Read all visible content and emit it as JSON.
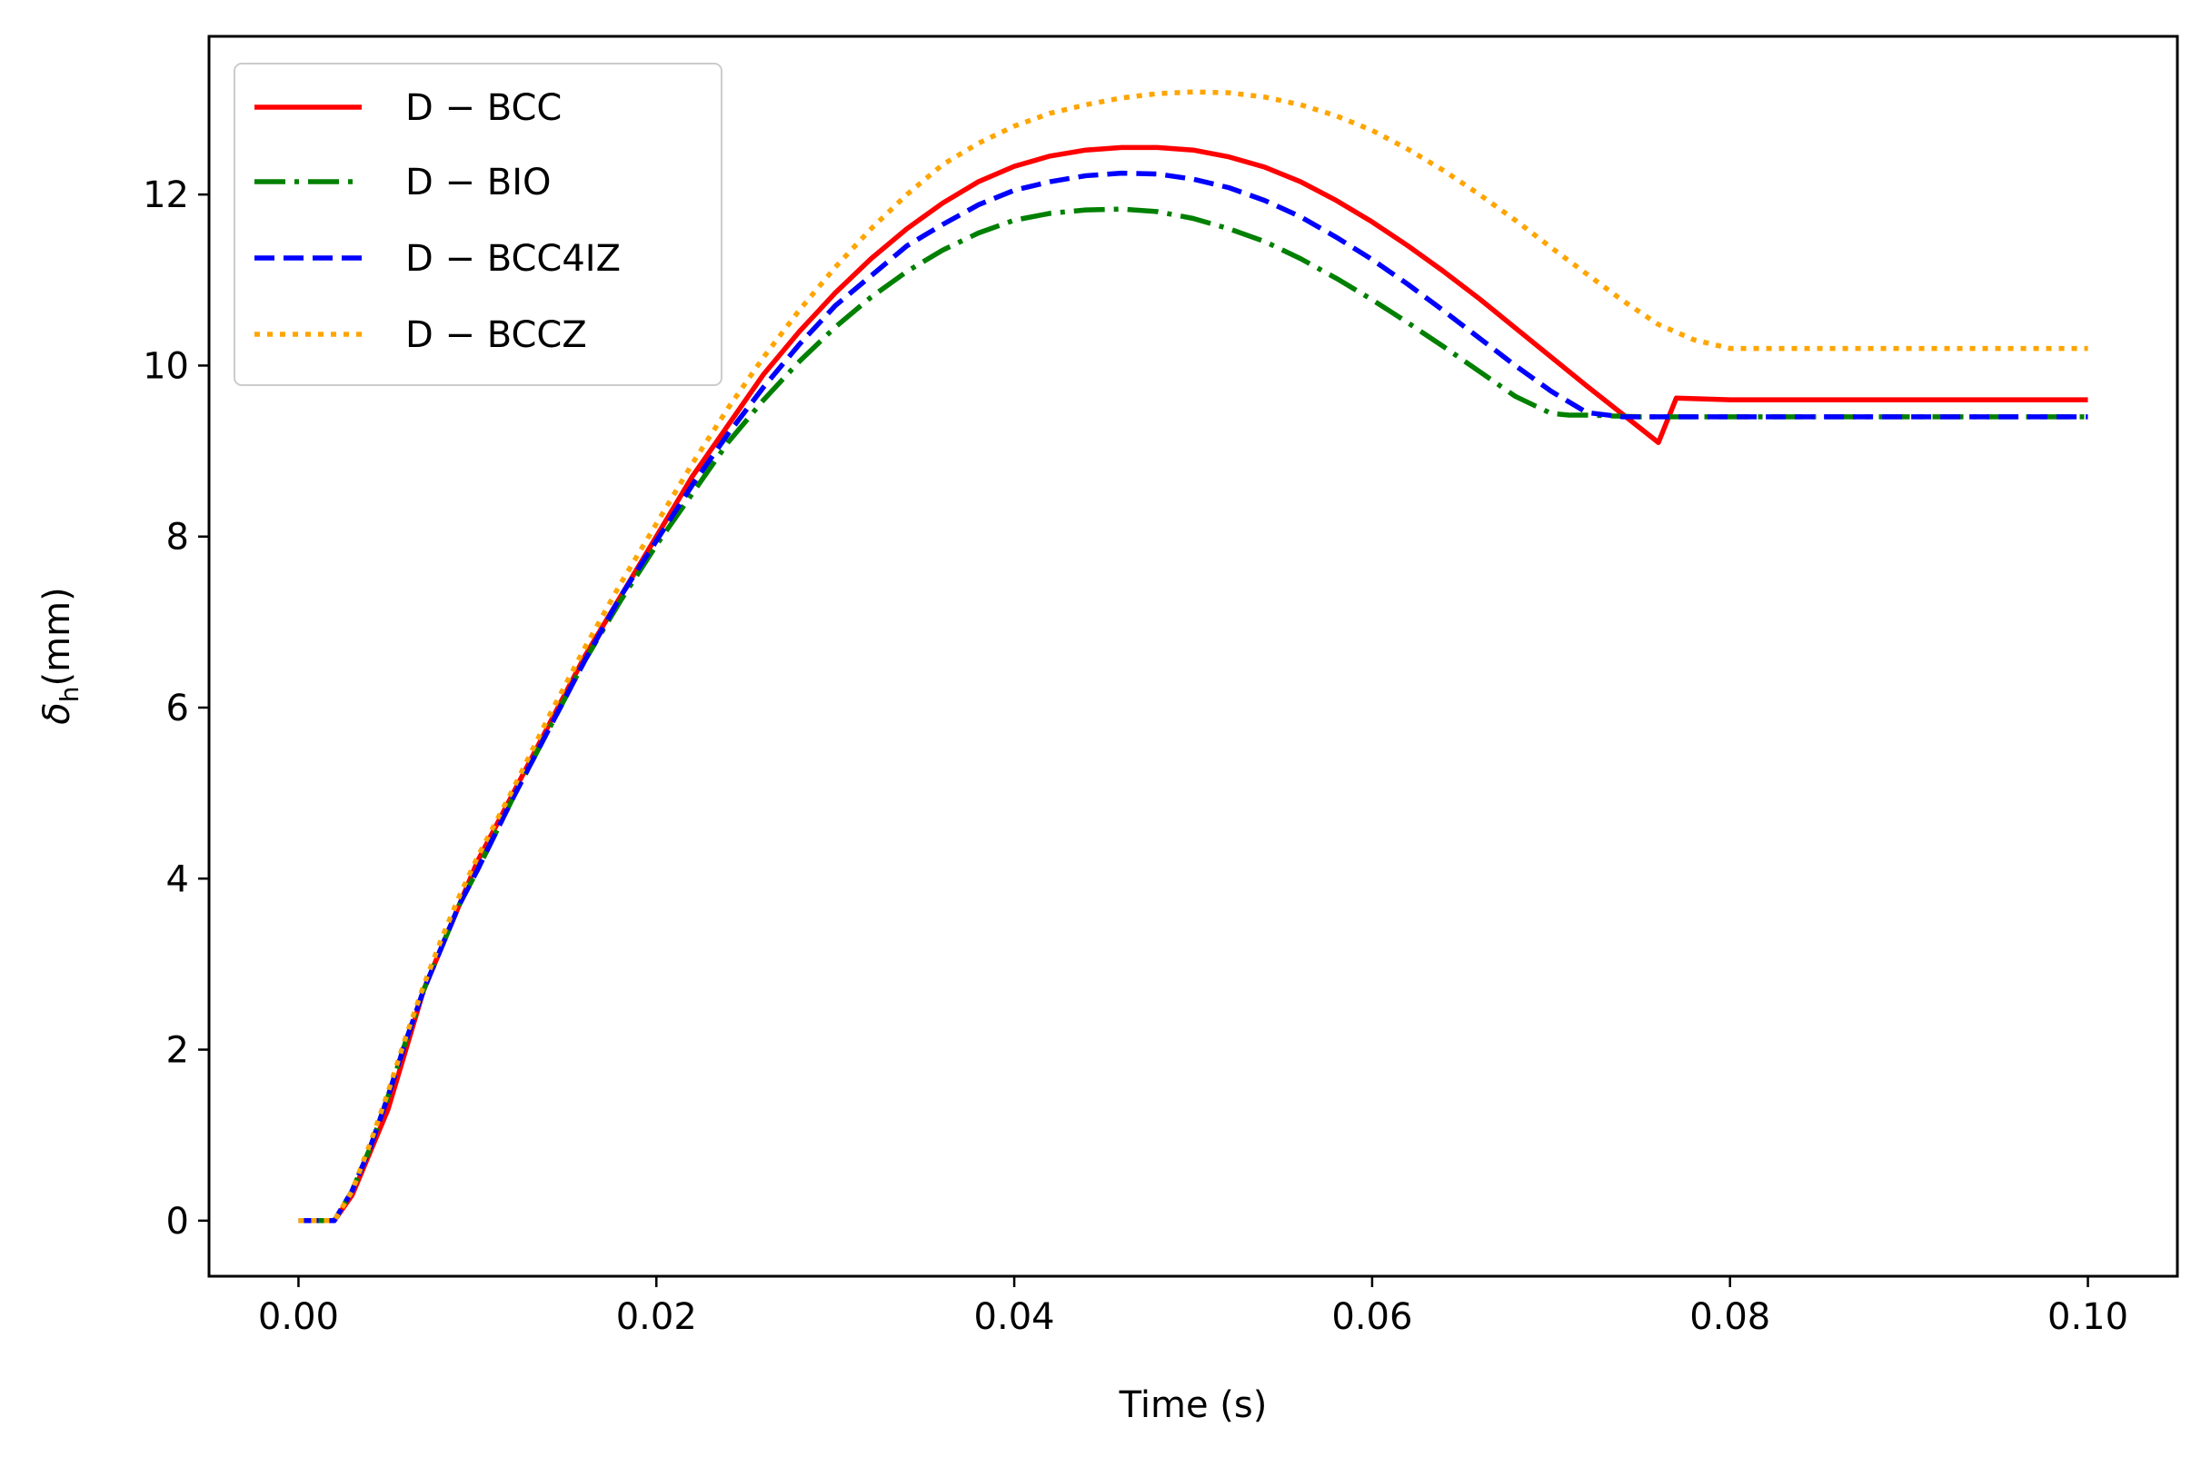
{
  "chart_data": {
    "type": "line",
    "title": "",
    "xlabel": "Time (s)",
    "ylabel_main": "δ",
    "ylabel_sub": "h",
    "ylabel_unit": "(mm)",
    "xlim": [
      -0.005,
      0.105
    ],
    "ylim": [
      -0.65,
      13.85
    ],
    "xticks": [
      0.0,
      0.02,
      0.04,
      0.06,
      0.08,
      0.1
    ],
    "xtick_labels": [
      "0.00",
      "0.02",
      "0.04",
      "0.06",
      "0.08",
      "0.10"
    ],
    "yticks": [
      0,
      2,
      4,
      6,
      8,
      10,
      12
    ],
    "ytick_labels": [
      "0",
      "2",
      "4",
      "6",
      "8",
      "10",
      "12"
    ],
    "legend_position": "top-left",
    "series": [
      {
        "name": "D − BCC",
        "color": "#ff0000",
        "dash": "solid",
        "x": [
          0.0,
          0.002,
          0.003,
          0.004,
          0.005,
          0.006,
          0.007,
          0.008,
          0.009,
          0.01,
          0.012,
          0.014,
          0.016,
          0.018,
          0.02,
          0.022,
          0.024,
          0.026,
          0.028,
          0.03,
          0.032,
          0.034,
          0.036,
          0.038,
          0.04,
          0.042,
          0.044,
          0.046,
          0.048,
          0.05,
          0.052,
          0.054,
          0.056,
          0.058,
          0.06,
          0.062,
          0.064,
          0.066,
          0.068,
          0.07,
          0.072,
          0.074,
          0.076,
          0.077,
          0.08,
          0.085,
          0.09,
          0.095,
          0.1
        ],
        "y": [
          0.0,
          0.0,
          0.3,
          0.8,
          1.3,
          2.0,
          2.7,
          3.2,
          3.7,
          4.2,
          5.0,
          5.8,
          6.6,
          7.3,
          8.0,
          8.7,
          9.3,
          9.9,
          10.4,
          10.85,
          11.25,
          11.6,
          11.9,
          12.15,
          12.33,
          12.45,
          12.52,
          12.55,
          12.55,
          12.52,
          12.44,
          12.32,
          12.15,
          11.93,
          11.68,
          11.4,
          11.1,
          10.78,
          10.44,
          10.1,
          9.76,
          9.43,
          9.1,
          9.62,
          9.6,
          9.6,
          9.6,
          9.6,
          9.6
        ]
      },
      {
        "name": "D − BIO",
        "color": "#008000",
        "dash": "dashdot",
        "x": [
          0.0,
          0.002,
          0.003,
          0.004,
          0.005,
          0.006,
          0.007,
          0.008,
          0.009,
          0.01,
          0.012,
          0.014,
          0.016,
          0.018,
          0.02,
          0.022,
          0.024,
          0.026,
          0.028,
          0.03,
          0.032,
          0.034,
          0.036,
          0.038,
          0.04,
          0.042,
          0.044,
          0.046,
          0.048,
          0.05,
          0.052,
          0.054,
          0.056,
          0.058,
          0.06,
          0.062,
          0.064,
          0.066,
          0.068,
          0.07,
          0.071,
          0.072,
          0.075,
          0.08,
          0.085,
          0.09,
          0.095,
          0.1
        ],
        "y": [
          0.0,
          0.0,
          0.35,
          0.85,
          1.45,
          2.1,
          2.7,
          3.2,
          3.7,
          4.1,
          4.95,
          5.75,
          6.55,
          7.25,
          7.9,
          8.5,
          9.1,
          9.6,
          10.05,
          10.45,
          10.8,
          11.1,
          11.35,
          11.55,
          11.7,
          11.78,
          11.82,
          11.83,
          11.8,
          11.72,
          11.6,
          11.45,
          11.25,
          11.02,
          10.77,
          10.5,
          10.22,
          9.93,
          9.64,
          9.44,
          9.42,
          9.42,
          9.4,
          9.4,
          9.4,
          9.4,
          9.4,
          9.4
        ]
      },
      {
        "name": "D − BCC4IZ",
        "color": "#0000ff",
        "dash": "dashed",
        "x": [
          0.0,
          0.002,
          0.003,
          0.004,
          0.005,
          0.006,
          0.007,
          0.008,
          0.009,
          0.01,
          0.012,
          0.014,
          0.016,
          0.018,
          0.02,
          0.022,
          0.024,
          0.026,
          0.028,
          0.03,
          0.032,
          0.034,
          0.036,
          0.038,
          0.04,
          0.042,
          0.044,
          0.046,
          0.048,
          0.05,
          0.052,
          0.054,
          0.056,
          0.058,
          0.06,
          0.062,
          0.064,
          0.066,
          0.068,
          0.07,
          0.072,
          0.074,
          0.075,
          0.08,
          0.085,
          0.09,
          0.095,
          0.1
        ],
        "y": [
          0.0,
          0.0,
          0.35,
          0.85,
          1.45,
          2.1,
          2.7,
          3.2,
          3.7,
          4.1,
          4.95,
          5.75,
          6.55,
          7.3,
          7.95,
          8.6,
          9.2,
          9.75,
          10.25,
          10.7,
          11.05,
          11.4,
          11.65,
          11.88,
          12.05,
          12.15,
          12.22,
          12.25,
          12.24,
          12.18,
          12.08,
          11.93,
          11.74,
          11.5,
          11.24,
          10.95,
          10.64,
          10.32,
          10.0,
          9.7,
          9.45,
          9.4,
          9.4,
          9.4,
          9.4,
          9.4,
          9.4,
          9.4
        ]
      },
      {
        "name": "D − BCCZ",
        "color": "#ffa500",
        "dash": "dotted",
        "x": [
          0.0,
          0.002,
          0.003,
          0.004,
          0.005,
          0.006,
          0.007,
          0.008,
          0.009,
          0.01,
          0.012,
          0.014,
          0.016,
          0.018,
          0.02,
          0.022,
          0.024,
          0.026,
          0.028,
          0.03,
          0.032,
          0.034,
          0.036,
          0.038,
          0.04,
          0.042,
          0.044,
          0.046,
          0.048,
          0.05,
          0.052,
          0.054,
          0.056,
          0.058,
          0.06,
          0.062,
          0.064,
          0.066,
          0.068,
          0.07,
          0.072,
          0.074,
          0.076,
          0.078,
          0.08,
          0.081,
          0.085,
          0.09,
          0.095,
          0.1
        ],
        "y": [
          0.0,
          0.0,
          0.35,
          0.9,
          1.5,
          2.15,
          2.75,
          3.3,
          3.8,
          4.25,
          5.05,
          5.9,
          6.7,
          7.45,
          8.15,
          8.85,
          9.5,
          10.1,
          10.65,
          11.15,
          11.6,
          12.0,
          12.35,
          12.6,
          12.8,
          12.95,
          13.05,
          13.13,
          13.18,
          13.2,
          13.19,
          13.14,
          13.05,
          12.92,
          12.75,
          12.53,
          12.28,
          12.0,
          11.7,
          11.38,
          11.07,
          10.76,
          10.48,
          10.3,
          10.2,
          10.2,
          10.2,
          10.2,
          10.2,
          10.2
        ]
      }
    ]
  }
}
